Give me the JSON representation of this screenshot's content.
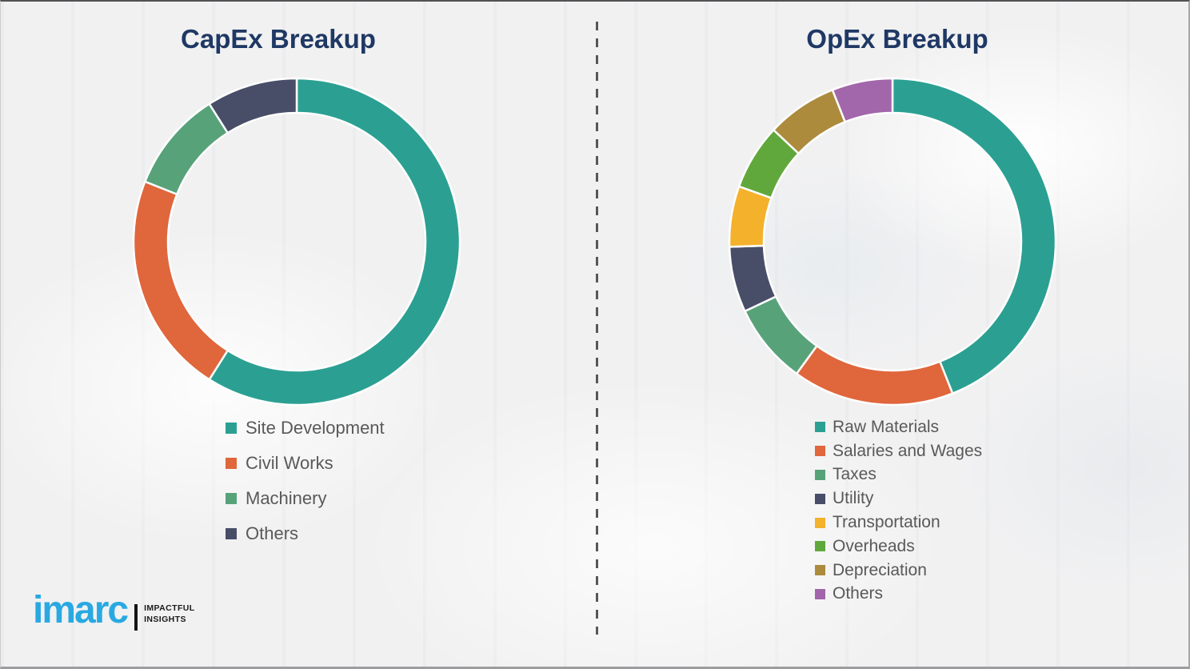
{
  "page": {
    "background_color": "#f1f1f2",
    "title_color": "#1f3864",
    "legend_text_color": "#595959",
    "divider_style": "vertical-dashed",
    "divider_color": "#57575a"
  },
  "chart_data": [
    {
      "type": "donut",
      "title": "CapEx Breakup",
      "categories": [
        "Site Development",
        "Civil Works",
        "Machinery",
        "Others"
      ],
      "values": [
        59,
        22,
        10,
        9
      ],
      "unit": "percent",
      "colors": [
        "#2ba092",
        "#e0663c",
        "#58a27a",
        "#484e68"
      ],
      "start_angle_deg": 0,
      "direction": "clockwise",
      "inner_radius_ratio": 0.79,
      "legend_position": "below",
      "legend": [
        "Site Development",
        "Civil Works",
        "Machinery",
        "Others"
      ]
    },
    {
      "type": "donut",
      "title": "OpEx Breakup",
      "categories": [
        "Raw Materials",
        "Salaries and Wages",
        "Taxes",
        "Utility",
        "Transportation",
        "Overheads",
        "Depreciation",
        "Others"
      ],
      "values": [
        44,
        16,
        8,
        6.5,
        6,
        6.5,
        7,
        6
      ],
      "unit": "percent",
      "colors": [
        "#2ba092",
        "#e0663c",
        "#58a27a",
        "#484e68",
        "#f4b12b",
        "#61a83c",
        "#ac8b3d",
        "#a266ab"
      ],
      "start_angle_deg": 0,
      "direction": "clockwise",
      "inner_radius_ratio": 0.79,
      "legend_position": "below",
      "legend": [
        "Raw Materials",
        "Salaries and Wages",
        "Taxes",
        "Utility",
        "Transportation",
        "Overheads",
        "Depreciation",
        "Others"
      ]
    }
  ],
  "logo": {
    "brand": "imarc",
    "brand_color": "#29a9e1",
    "tagline_line1": "IMPACTFUL",
    "tagline_line2": "INSIGHTS"
  }
}
